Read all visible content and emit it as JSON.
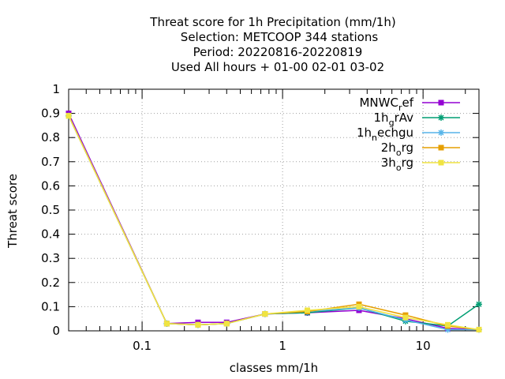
{
  "chart_data": {
    "type": "line",
    "title_lines": [
      "Threat score  for 1h Precipitation (mm/1h)",
      "Selection: METCOOP    344 stations",
      "Period: 20220816-20220819",
      "Used  All hours + 01-00 02-01 03-02"
    ],
    "xlabel": "classes mm/1h",
    "ylabel": "Threat score",
    "x_scale": "log",
    "xlim": [
      0.03,
      25
    ],
    "ylim": [
      0,
      1
    ],
    "x_ticks": [
      0.1,
      1,
      10
    ],
    "x_tick_labels": [
      "0.1",
      "1",
      "10"
    ],
    "y_ticks": [
      0,
      0.1,
      0.2,
      0.3,
      0.4,
      0.5,
      0.6,
      0.7,
      0.8,
      0.9,
      1
    ],
    "y_tick_labels": [
      "0",
      "0.1",
      "0.2",
      "0.3",
      "0.4",
      "0.5",
      "0.6",
      "0.7",
      "0.8",
      "0.9",
      "1"
    ],
    "grid": true,
    "legend_position": "top-right",
    "x": [
      0.03,
      0.15,
      0.25,
      0.4,
      0.75,
      1.5,
      3.5,
      7.5,
      15,
      25
    ],
    "series": [
      {
        "name": "MNWC_ref",
        "name_main": "MNWC",
        "name_sub": "r",
        "name_rest": "ef",
        "color": "#9400d3",
        "marker": "square",
        "values": [
          0.9,
          0.03,
          0.035,
          0.035,
          0.07,
          0.075,
          0.085,
          0.05,
          0.01,
          0.005
        ]
      },
      {
        "name": "1h_grAv",
        "name_main": "1h",
        "name_sub": "g",
        "name_rest": "rAv",
        "color": "#009e73",
        "marker": "star",
        "values": [
          0.89,
          0.03,
          0.025,
          0.03,
          0.07,
          0.075,
          0.095,
          0.04,
          0.02,
          0.11
        ]
      },
      {
        "name": "1h_nechgu",
        "name_main": "1h",
        "name_sub": "n",
        "name_rest": "echgu",
        "color": "#56b4e9",
        "marker": "star",
        "values": [
          0.89,
          0.03,
          0.025,
          0.03,
          0.07,
          0.08,
          0.095,
          0.045,
          0.005,
          0.005
        ]
      },
      {
        "name": "2h_org",
        "name_main": "2h",
        "name_sub": "o",
        "name_rest": "rg",
        "color": "#e69f00",
        "marker": "square",
        "values": [
          0.89,
          0.03,
          0.025,
          0.03,
          0.07,
          0.08,
          0.11,
          0.065,
          0.02,
          0.005
        ]
      },
      {
        "name": "3h_org",
        "name_main": "3h",
        "name_sub": "o",
        "name_rest": "rg",
        "color": "#f0e442",
        "marker": "square",
        "values": [
          0.89,
          0.03,
          0.025,
          0.03,
          0.07,
          0.085,
          0.1,
          0.055,
          0.025,
          0.005
        ]
      }
    ]
  }
}
